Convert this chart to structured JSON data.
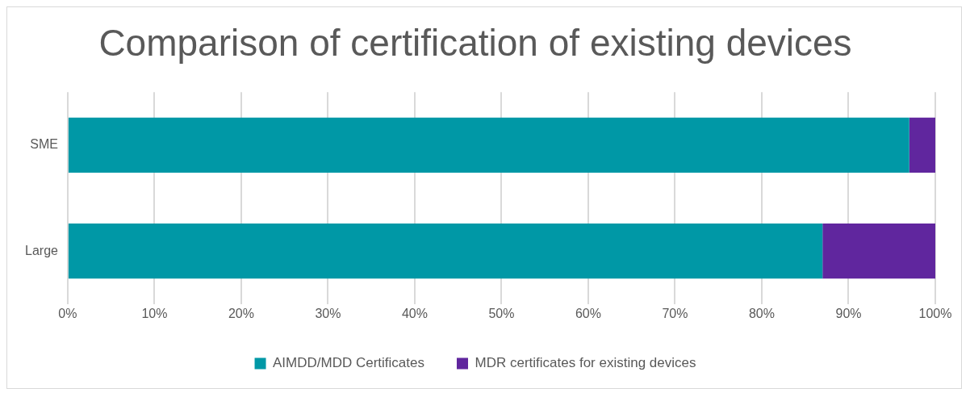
{
  "chart_data": {
    "type": "bar",
    "orientation": "horizontal",
    "stacked": true,
    "title": "Comparison of certification of existing devices",
    "categories": [
      "SME",
      "Large"
    ],
    "series": [
      {
        "name": "AIMDD/MDD Certificates",
        "color": "#0098a6",
        "values": [
          97,
          87
        ]
      },
      {
        "name": "MDR certificates for existing devices",
        "color": "#60269e",
        "values": [
          3,
          13
        ]
      }
    ],
    "xlim": [
      0,
      100
    ],
    "xticks": [
      {
        "value": 0,
        "label": "0%"
      },
      {
        "value": 10,
        "label": "10%"
      },
      {
        "value": 20,
        "label": "20%"
      },
      {
        "value": 30,
        "label": "30%"
      },
      {
        "value": 40,
        "label": "40%"
      },
      {
        "value": 50,
        "label": "50%"
      },
      {
        "value": 60,
        "label": "60%"
      },
      {
        "value": 70,
        "label": "70%"
      },
      {
        "value": 80,
        "label": "80%"
      },
      {
        "value": 90,
        "label": "90%"
      },
      {
        "value": 100,
        "label": "100%"
      }
    ],
    "grid": "x",
    "legend": "bottom"
  }
}
